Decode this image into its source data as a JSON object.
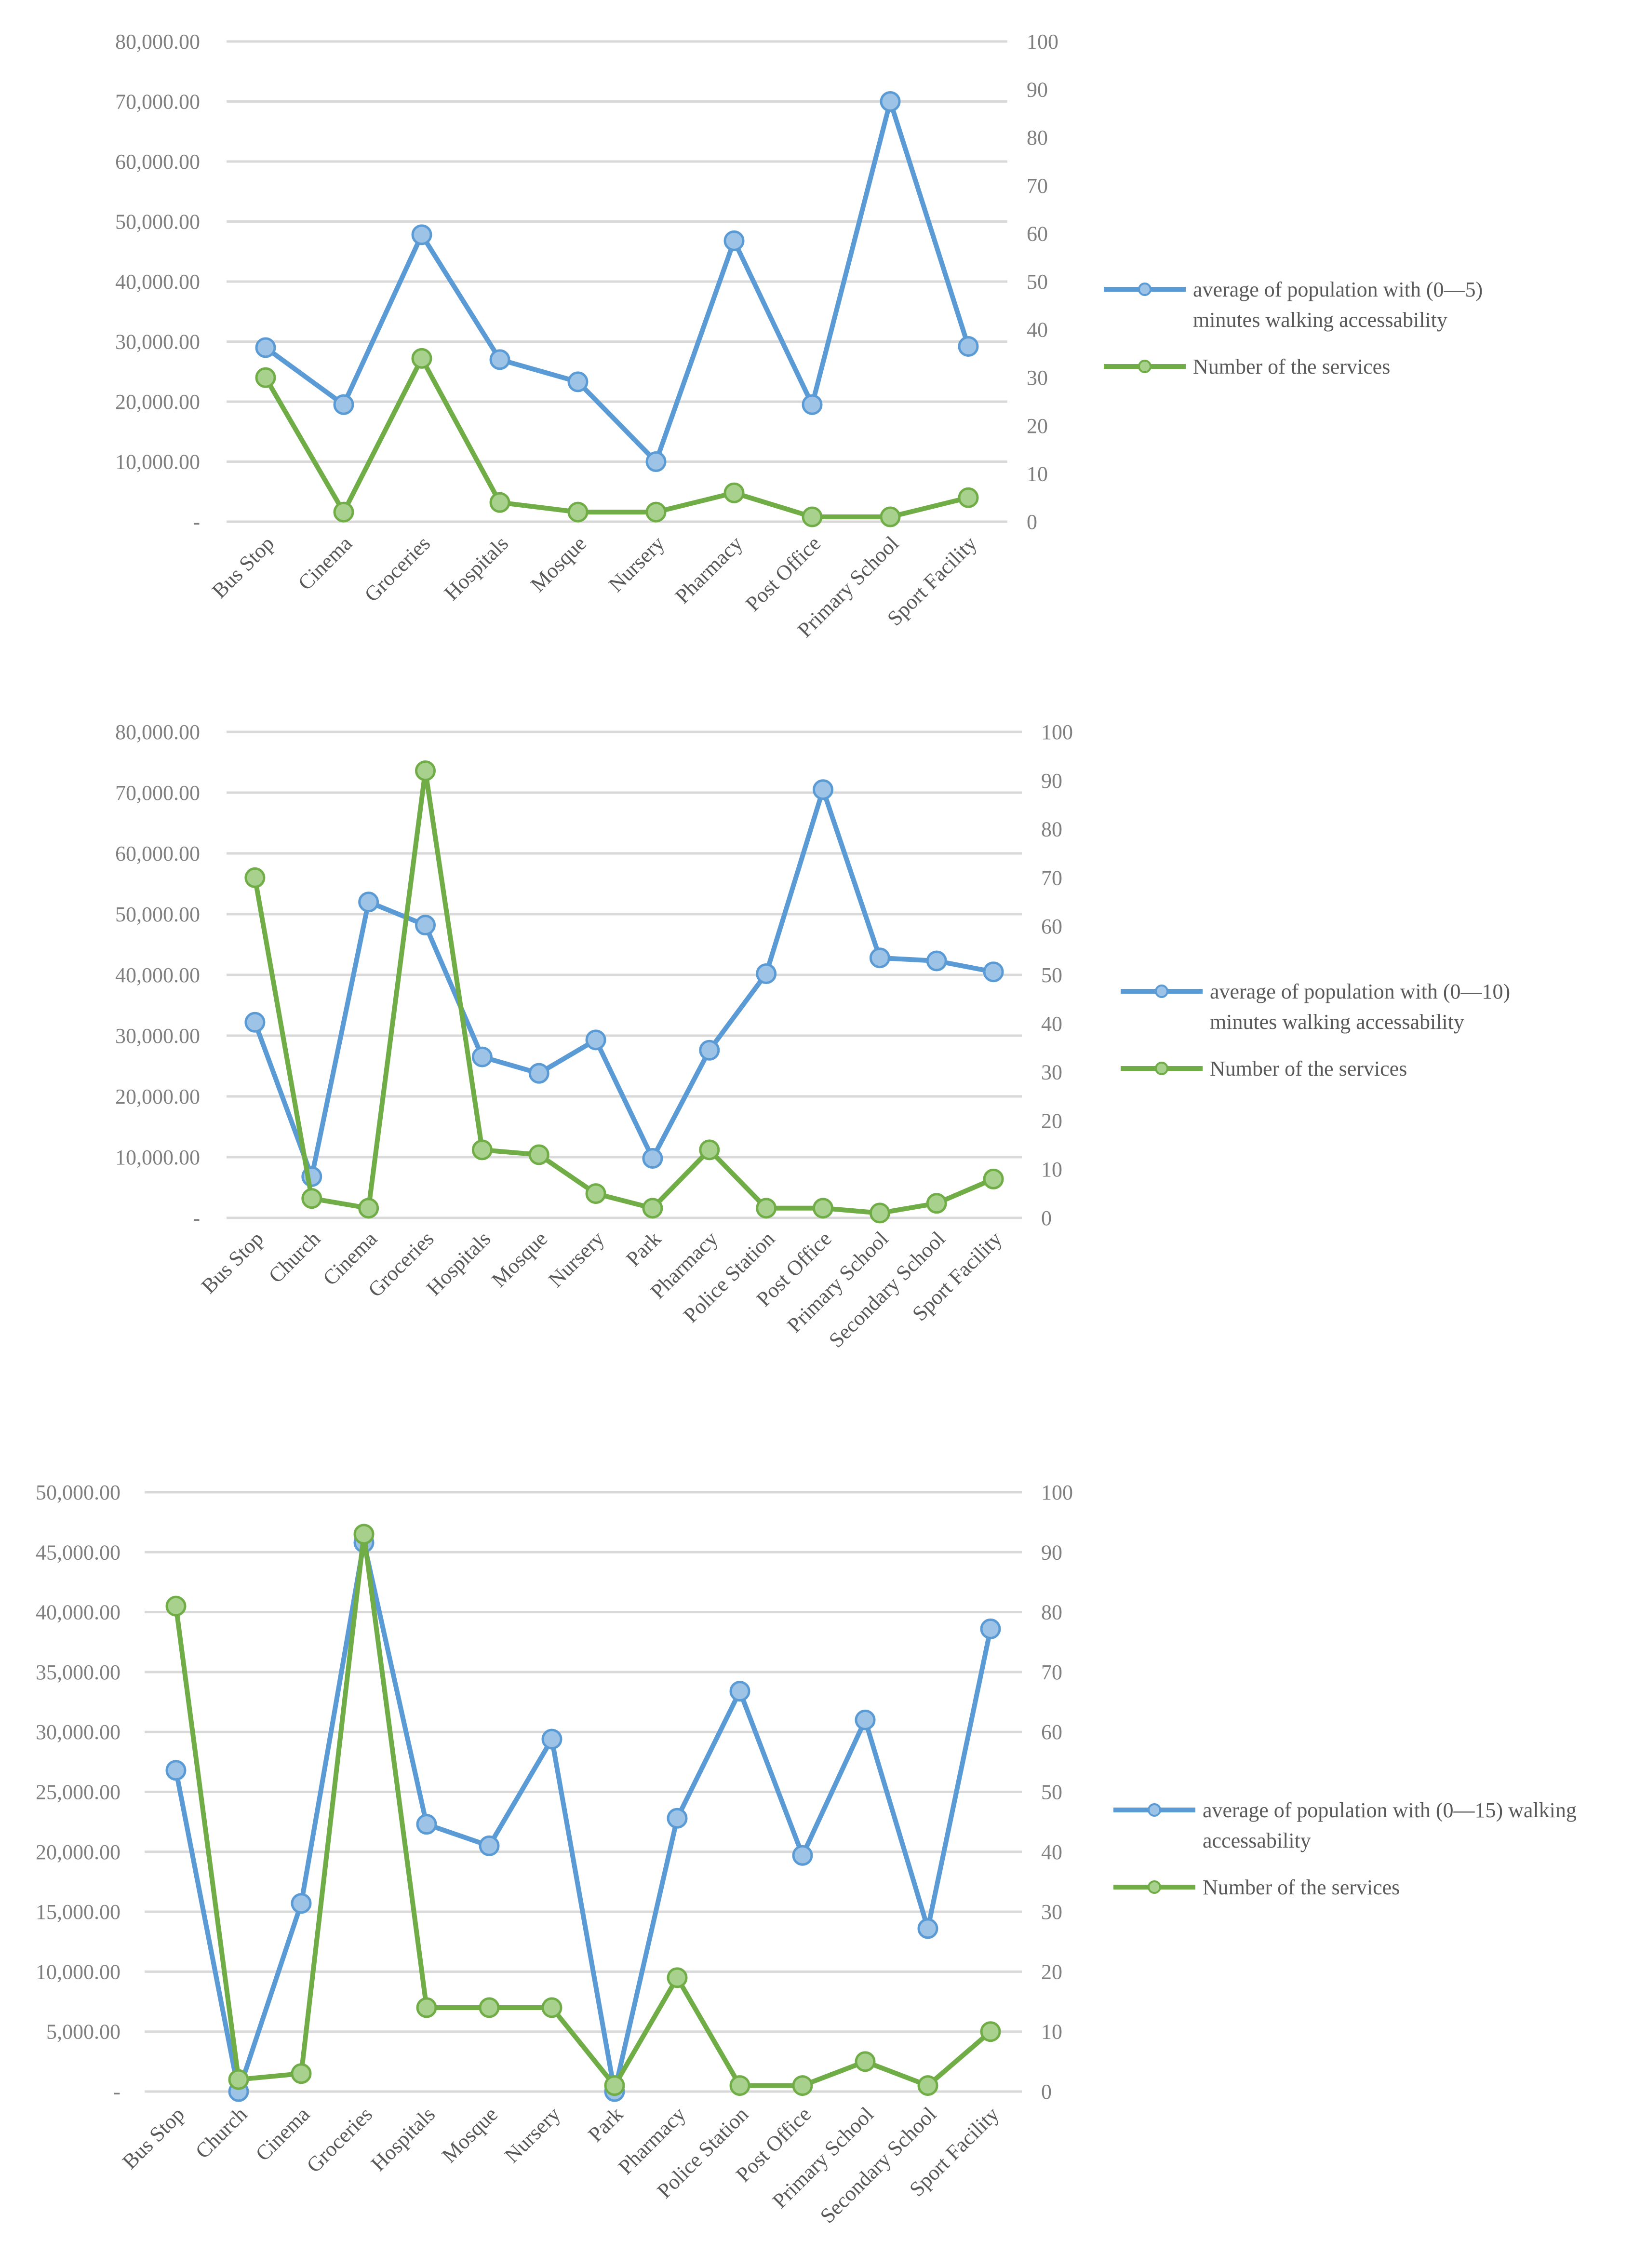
{
  "colors": {
    "series_population": "#5b9bd5",
    "series_population_marker": "#9dc3e6",
    "series_services": "#70ad47",
    "series_services_marker": "#a9d18e",
    "grid": "#d9d9d9",
    "tick_text": "#7f7f7f"
  },
  "chart_data": [
    {
      "type": "line",
      "title": "",
      "categories": [
        "Bus Stop",
        "Cinema",
        "Groceries",
        "Hospitals",
        "Mosque",
        "Nursery",
        "Pharmacy",
        "Post Office",
        "Primary School",
        "Sport Facility"
      ],
      "series": [
        {
          "name": "average of population with (0—5)",
          "legend_line2": "minutes walking accessability",
          "axis": "left",
          "values": [
            29000,
            19500,
            47800,
            27000,
            23300,
            10000,
            46800,
            19500,
            70000,
            29200
          ]
        },
        {
          "name": "Number of the services",
          "axis": "right",
          "values": [
            30,
            2,
            34,
            4,
            2,
            2,
            6,
            1,
            1,
            5
          ]
        }
      ],
      "y_left": {
        "range": [
          0,
          80000
        ],
        "tick_labels": [
          "-",
          "10,000.00",
          "20,000.00",
          "30,000.00",
          "40,000.00",
          "50,000.00",
          "60,000.00",
          "70,000.00",
          "80,000.00"
        ]
      },
      "y_right": {
        "range": [
          0,
          100
        ],
        "tick_labels": [
          "0",
          "10",
          "20",
          "30",
          "40",
          "50",
          "60",
          "70",
          "80",
          "90",
          "100"
        ]
      },
      "grid": true,
      "legend": "right"
    },
    {
      "type": "line",
      "title": "",
      "categories": [
        "Bus Stop",
        "Church",
        "Cinema",
        "Groceries",
        "Hospitals",
        "Mosque",
        "Nursery",
        "Park",
        "Pharmacy",
        "Police Station",
        "Post Office",
        "Primary School",
        "Secondary School",
        "Sport Facility"
      ],
      "series": [
        {
          "name": "average of population with (0—10)",
          "legend_line2": "minutes walking accessability",
          "axis": "left",
          "values": [
            32200,
            6800,
            52000,
            48200,
            26500,
            23800,
            29300,
            9800,
            27600,
            40200,
            70500,
            42800,
            42300,
            40500
          ]
        },
        {
          "name": "Number of the services",
          "axis": "right",
          "values": [
            70,
            4,
            2,
            92,
            14,
            13,
            5,
            2,
            14,
            2,
            2,
            1,
            3,
            8
          ]
        }
      ],
      "y_left": {
        "range": [
          0,
          80000
        ],
        "tick_labels": [
          "-",
          "10,000.00",
          "20,000.00",
          "30,000.00",
          "40,000.00",
          "50,000.00",
          "60,000.00",
          "70,000.00",
          "80,000.00"
        ]
      },
      "y_right": {
        "range": [
          0,
          100
        ],
        "tick_labels": [
          "0",
          "10",
          "20",
          "30",
          "40",
          "50",
          "60",
          "70",
          "80",
          "90",
          "100"
        ]
      },
      "grid": true,
      "legend": "right"
    },
    {
      "type": "line",
      "title": "",
      "categories": [
        "Bus Stop",
        "Church",
        "Cinema",
        "Groceries",
        "Hospitals",
        "Mosque",
        "Nursery",
        "Park",
        "Pharmacy",
        "Police Station",
        "Post Office",
        "Primary School",
        "Secondary School",
        "Sport Facility"
      ],
      "series": [
        {
          "name": "average of population with (0—15) walking",
          "legend_line2": "accessability",
          "axis": "left",
          "values": [
            26800,
            0,
            15700,
            45800,
            22300,
            20500,
            29400,
            0,
            22800,
            33400,
            19700,
            31000,
            13600,
            38600
          ]
        },
        {
          "name": "Number of the services",
          "axis": "right",
          "values": [
            81,
            2,
            3,
            93,
            14,
            14,
            14,
            1,
            19,
            1,
            1,
            5,
            1,
            10
          ]
        }
      ],
      "y_left": {
        "range": [
          0,
          50000
        ],
        "tick_labels": [
          "-",
          "5,000.00",
          "10,000.00",
          "15,000.00",
          "20,000.00",
          "25,000.00",
          "30,000.00",
          "35,000.00",
          "40,000.00",
          "45,000.00",
          "50,000.00"
        ]
      },
      "y_right": {
        "range": [
          0,
          100
        ],
        "tick_labels": [
          "0",
          "10",
          "20",
          "30",
          "40",
          "50",
          "60",
          "70",
          "80",
          "90",
          "100"
        ]
      },
      "grid": true,
      "legend": "right"
    }
  ]
}
